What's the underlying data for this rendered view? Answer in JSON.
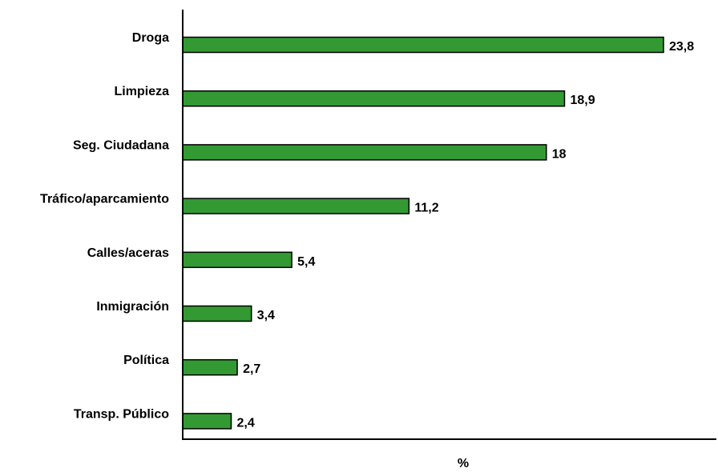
{
  "chart_data": {
    "type": "bar",
    "orientation": "horizontal",
    "categories": [
      "Droga",
      "Limpieza",
      "Seg. Ciudadana",
      "Tráfico/aparcamiento",
      "Calles/aceras",
      "Inmigración",
      "Política",
      "Transp. Público"
    ],
    "values": [
      23.8,
      18.9,
      18,
      11.2,
      5.4,
      3.4,
      2.7,
      2.4
    ],
    "value_labels": [
      "23,8",
      "18,9",
      "18",
      "11,2",
      "5,4",
      "3,4",
      "2,7",
      "2,4"
    ],
    "xlabel": "%",
    "ylabel": "",
    "xlim": [
      0,
      26.5
    ],
    "grid": false,
    "legend": "none",
    "bar_color": "#339933",
    "bar_edge_color": "#000000"
  }
}
